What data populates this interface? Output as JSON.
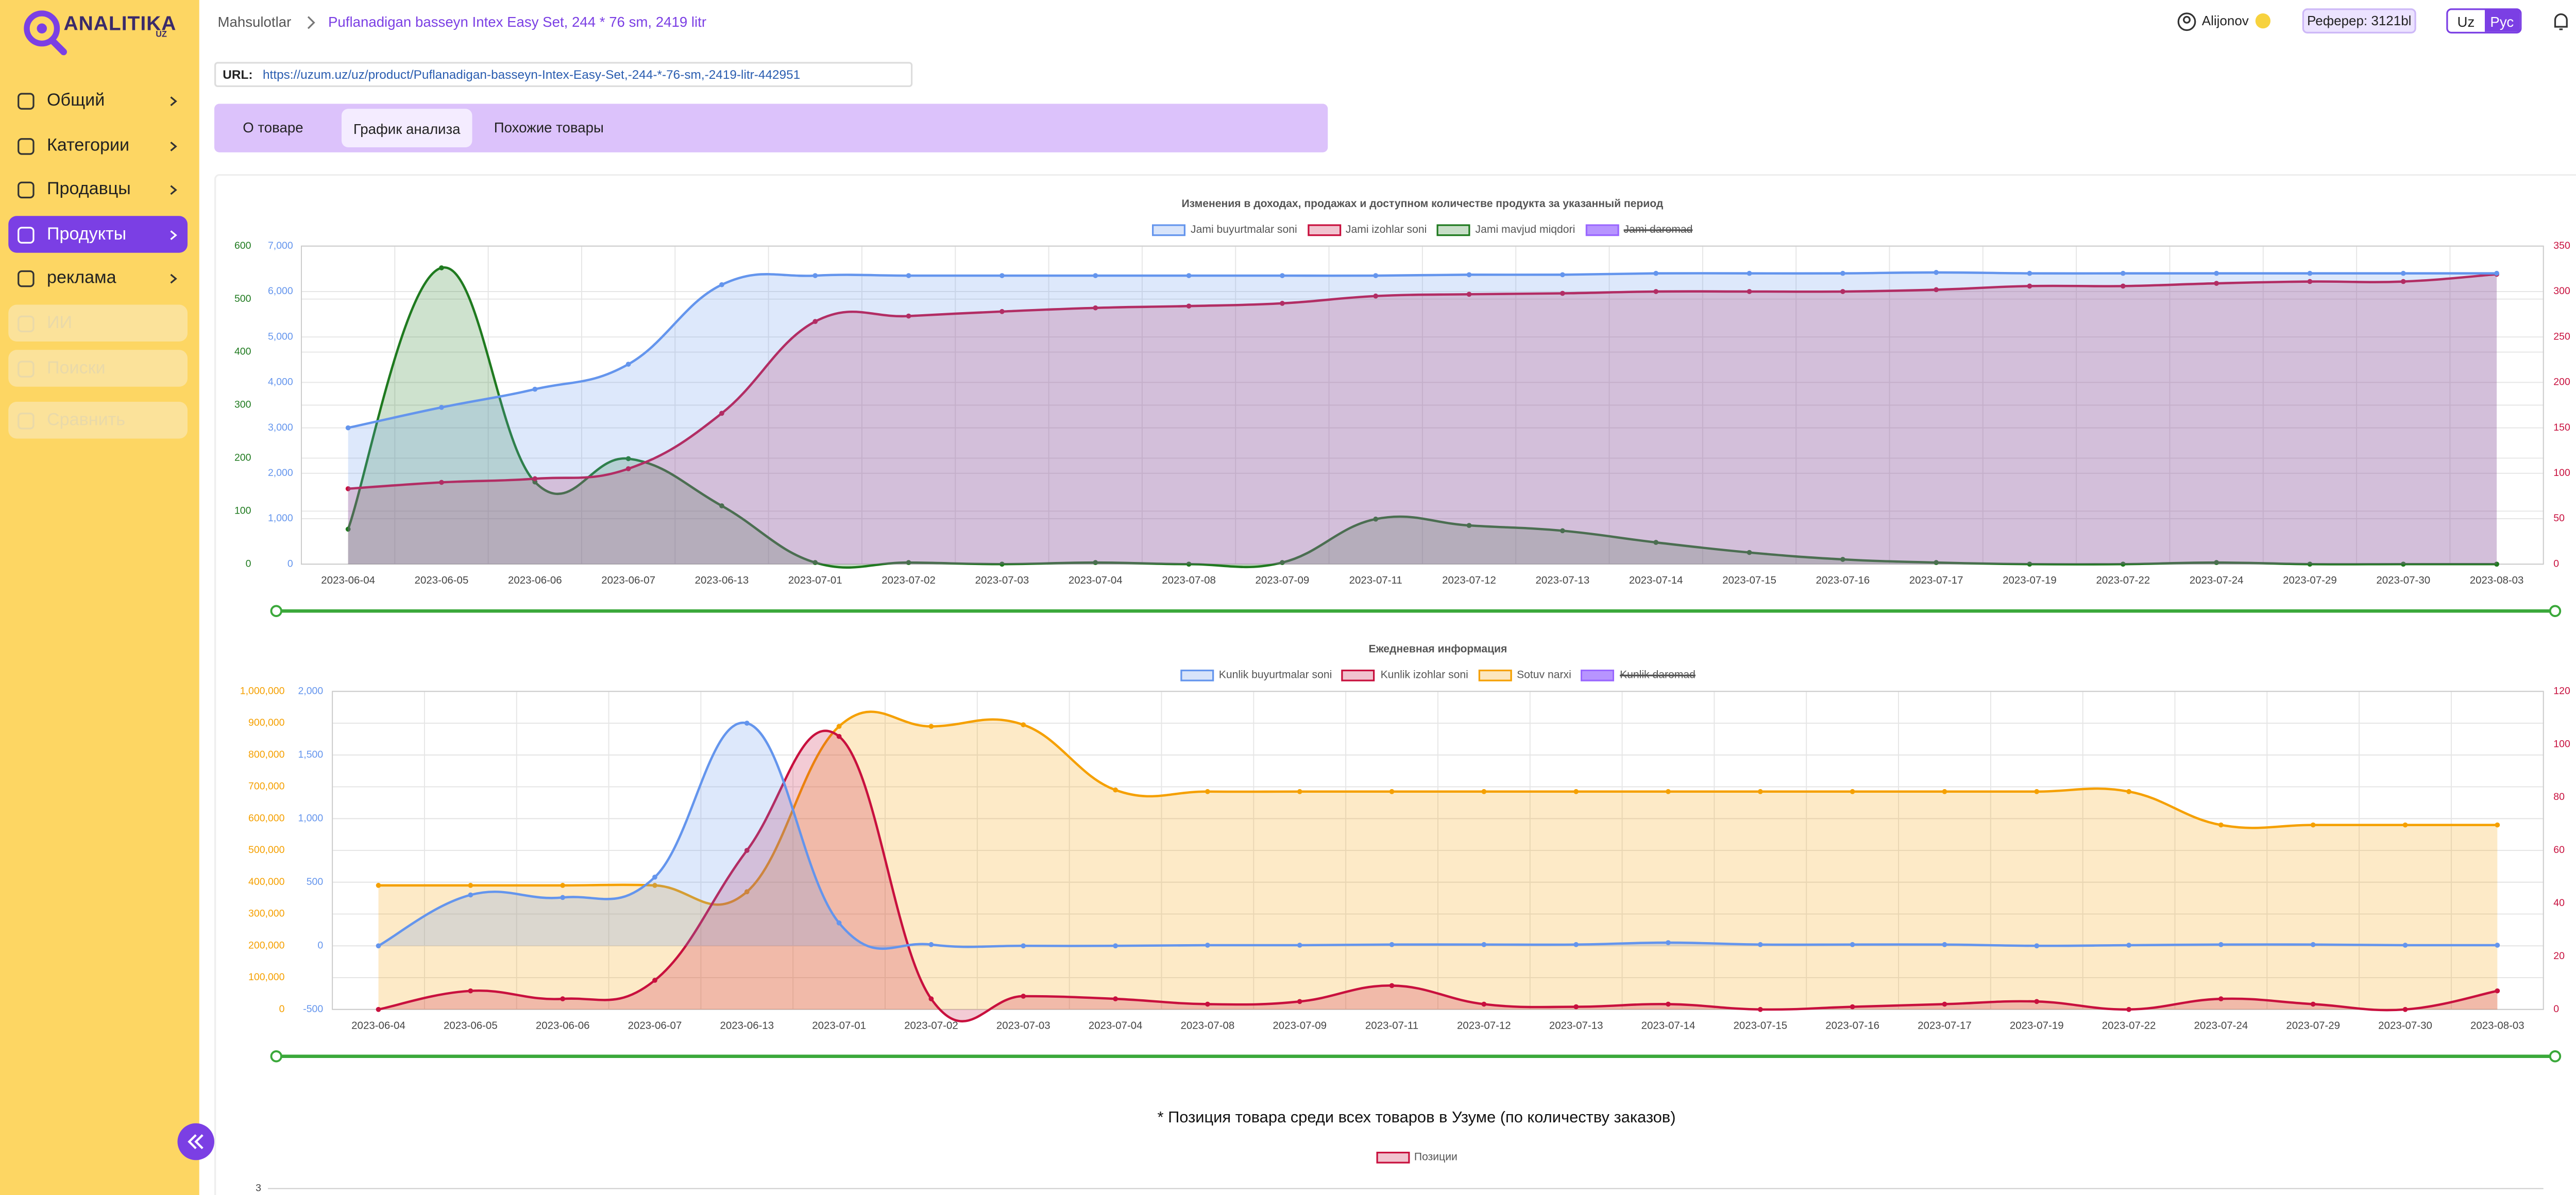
{
  "sidebar": {
    "logo": "ANALITIKA",
    "logo_sub": "UZ",
    "nav": [
      "Общий",
      "Категории",
      "Продавцы",
      "Продукты",
      "реклама",
      "ИИ",
      "Поиски",
      "Сравнить"
    ]
  },
  "header": {
    "breadcrumb": [
      "Mahsulotlar",
      "Puflanadigan basseyn Intex Easy Set, 244 * 76 sm, 2419 litr"
    ],
    "user": "Alijonov",
    "referrer": "Реферер: 3121bl",
    "languages": [
      "Uz",
      "Рус"
    ]
  },
  "url": {
    "label": "URL:",
    "value": "https://uzum.uz/uz/product/Puflanadigan-basseyn-Intex-Easy-Set,-244-*-76-sm,-2419-litr-442951"
  },
  "tabs": [
    "О товаре",
    "График анализа",
    "Похожие товары"
  ],
  "chart_data": [
    {
      "type": "line",
      "title": "Изменения в доходах, продажах и доступном количестве продукта за указанный период",
      "categories": [
        "2023-06-04",
        "2023-06-05",
        "2023-06-06",
        "2023-06-07",
        "2023-06-13",
        "2023-07-01",
        "2023-07-02",
        "2023-07-03",
        "2023-07-04",
        "2023-07-08",
        "2023-07-09",
        "2023-07-11",
        "2023-07-12",
        "2023-07-13",
        "2023-07-14",
        "2023-07-15",
        "2023-07-16",
        "2023-07-17",
        "2023-07-19",
        "2023-07-22",
        "2023-07-24",
        "2023-07-29",
        "2023-07-30",
        "2023-08-03"
      ],
      "series": [
        {
          "name": "Jami buyurtmalar soni",
          "color": "#6495ed",
          "axis": "y",
          "values": [
            3000,
            3450,
            3850,
            4400,
            6150,
            6350,
            6350,
            6350,
            6350,
            6350,
            6350,
            6350,
            6370,
            6370,
            6400,
            6400,
            6400,
            6420,
            6400,
            6400,
            6400,
            6400,
            6400,
            6400
          ]
        },
        {
          "name": "Jami izohlar soni",
          "color": "#c8103e",
          "axis": "y2",
          "values": [
            83,
            90,
            94,
            105,
            166,
            267,
            273,
            278,
            282,
            284,
            287,
            295,
            297,
            298,
            300,
            300,
            300,
            302,
            306,
            306,
            309,
            311,
            311,
            319
          ]
        },
        {
          "name": "Jami mavjud miqdori",
          "color": "#1f7a1f",
          "axis": "y3",
          "values": [
            66,
            559,
            155,
            199,
            110,
            3,
            3,
            0,
            3,
            0,
            3,
            85,
            73,
            63,
            41,
            22,
            9,
            3,
            0,
            0,
            3,
            0,
            0,
            0
          ]
        },
        {
          "name": "Jami daromad",
          "color": "#9966ff",
          "axis": "y4",
          "hidden": true
        }
      ],
      "ylim": [
        0,
        7000
      ],
      "yticks": [
        0,
        {
          "value": 1000,
          "label": "1,000"
        },
        {
          "value": 2000,
          "label": "2,000"
        },
        {
          "value": 3000,
          "label": "3,000"
        },
        {
          "value": 4000,
          "label": "4,000"
        },
        {
          "value": 5000,
          "label": "5,000"
        },
        {
          "value": 6000,
          "label": "6,000"
        },
        {
          "value": 7000,
          "label": "7,000"
        }
      ],
      "y2lim": [
        0,
        350
      ],
      "y2ticks": [
        0,
        50,
        100,
        150,
        200,
        250,
        300,
        350
      ],
      "y3lim": [
        0,
        600
      ],
      "y3ticks": [
        0,
        100,
        200,
        300,
        400,
        500,
        600
      ],
      "y4lim": [
        0,
        1.2
      ],
      "y4ticks": [
        0,
        0.2,
        0.4,
        0.6,
        0.8,
        {
          "value": 1,
          "label": "1.0"
        },
        1.2
      ],
      "grid": true
    },
    {
      "type": "line",
      "title": "Ежедневная информация",
      "categories": [
        "2023-06-04",
        "2023-06-05",
        "2023-06-06",
        "2023-06-07",
        "2023-06-13",
        "2023-07-01",
        "2023-07-02",
        "2023-07-03",
        "2023-07-04",
        "2023-07-08",
        "2023-07-09",
        "2023-07-11",
        "2023-07-12",
        "2023-07-13",
        "2023-07-14",
        "2023-07-15",
        "2023-07-16",
        "2023-07-17",
        "2023-07-19",
        "2023-07-22",
        "2023-07-24",
        "2023-07-29",
        "2023-07-30",
        "2023-08-03"
      ],
      "series": [
        {
          "name": "Kunlik buyurtmalar soni",
          "color": "#6495ed",
          "axis": "y",
          "values": [
            0,
            400,
            380,
            540,
            1750,
            180,
            10,
            0,
            0,
            5,
            5,
            10,
            10,
            10,
            25,
            10,
            10,
            10,
            0,
            5,
            10,
            10,
            5,
            5
          ]
        },
        {
          "name": "Kunlik izohlar soni",
          "color": "#c8103e",
          "axis": "y2",
          "values": [
            0,
            7,
            4,
            11,
            60,
            103,
            4,
            5,
            4,
            2,
            3,
            9,
            2,
            1,
            2,
            0,
            1,
            2,
            3,
            0,
            4,
            2,
            0,
            7
          ]
        },
        {
          "name": "Sotuv narxi",
          "color": "#f5a000",
          "axis": "y3",
          "values": [
            390000,
            390000,
            390000,
            390000,
            370000,
            890000,
            890000,
            895000,
            690000,
            685000,
            685000,
            685000,
            685000,
            685000,
            685000,
            685000,
            685000,
            685000,
            685000,
            685000,
            580000,
            580000,
            580000,
            580000
          ]
        },
        {
          "name": "Kunlik daromad",
          "color": "#9966ff",
          "axis": "y4",
          "hidden": true
        }
      ],
      "ylim": [
        -500,
        2000
      ],
      "yticks": [
        -500,
        0,
        500,
        {
          "value": 1000,
          "label": "1,000"
        },
        {
          "value": 1500,
          "label": "1,500"
        },
        {
          "value": 2000,
          "label": "2,000"
        }
      ],
      "y2lim": [
        0,
        120
      ],
      "y2ticks": [
        0,
        20,
        40,
        60,
        80,
        100,
        120
      ],
      "y3lim": [
        0,
        1000000
      ],
      "y3ticks": [
        0,
        {
          "value": 100000,
          "label": "100,000"
        },
        {
          "value": 200000,
          "label": "200,000"
        },
        {
          "value": 300000,
          "label": "300,000"
        },
        {
          "value": 400000,
          "label": "400,000"
        },
        {
          "value": 500000,
          "label": "500,000"
        },
        {
          "value": 600000,
          "label": "600,000"
        },
        {
          "value": 700000,
          "label": "700,000"
        },
        {
          "value": 800000,
          "label": "800,000"
        },
        {
          "value": 900000,
          "label": "900,000"
        },
        {
          "value": 1000000,
          "label": "1,000,000"
        }
      ],
      "y4lim": [
        0,
        1.2
      ],
      "y4ticks": [
        0,
        0.2,
        0.4,
        0.6,
        0.8,
        {
          "value": 1,
          "label": "1.0"
        },
        1.2
      ],
      "grid": true
    },
    {
      "type": "line",
      "title": "* Позиция товара среди всех товаров в Узуме (по количеству заказов)",
      "series": [
        {
          "name": "Позиции",
          "color": "#c8103e"
        }
      ],
      "yticks": [
        3
      ]
    }
  ]
}
